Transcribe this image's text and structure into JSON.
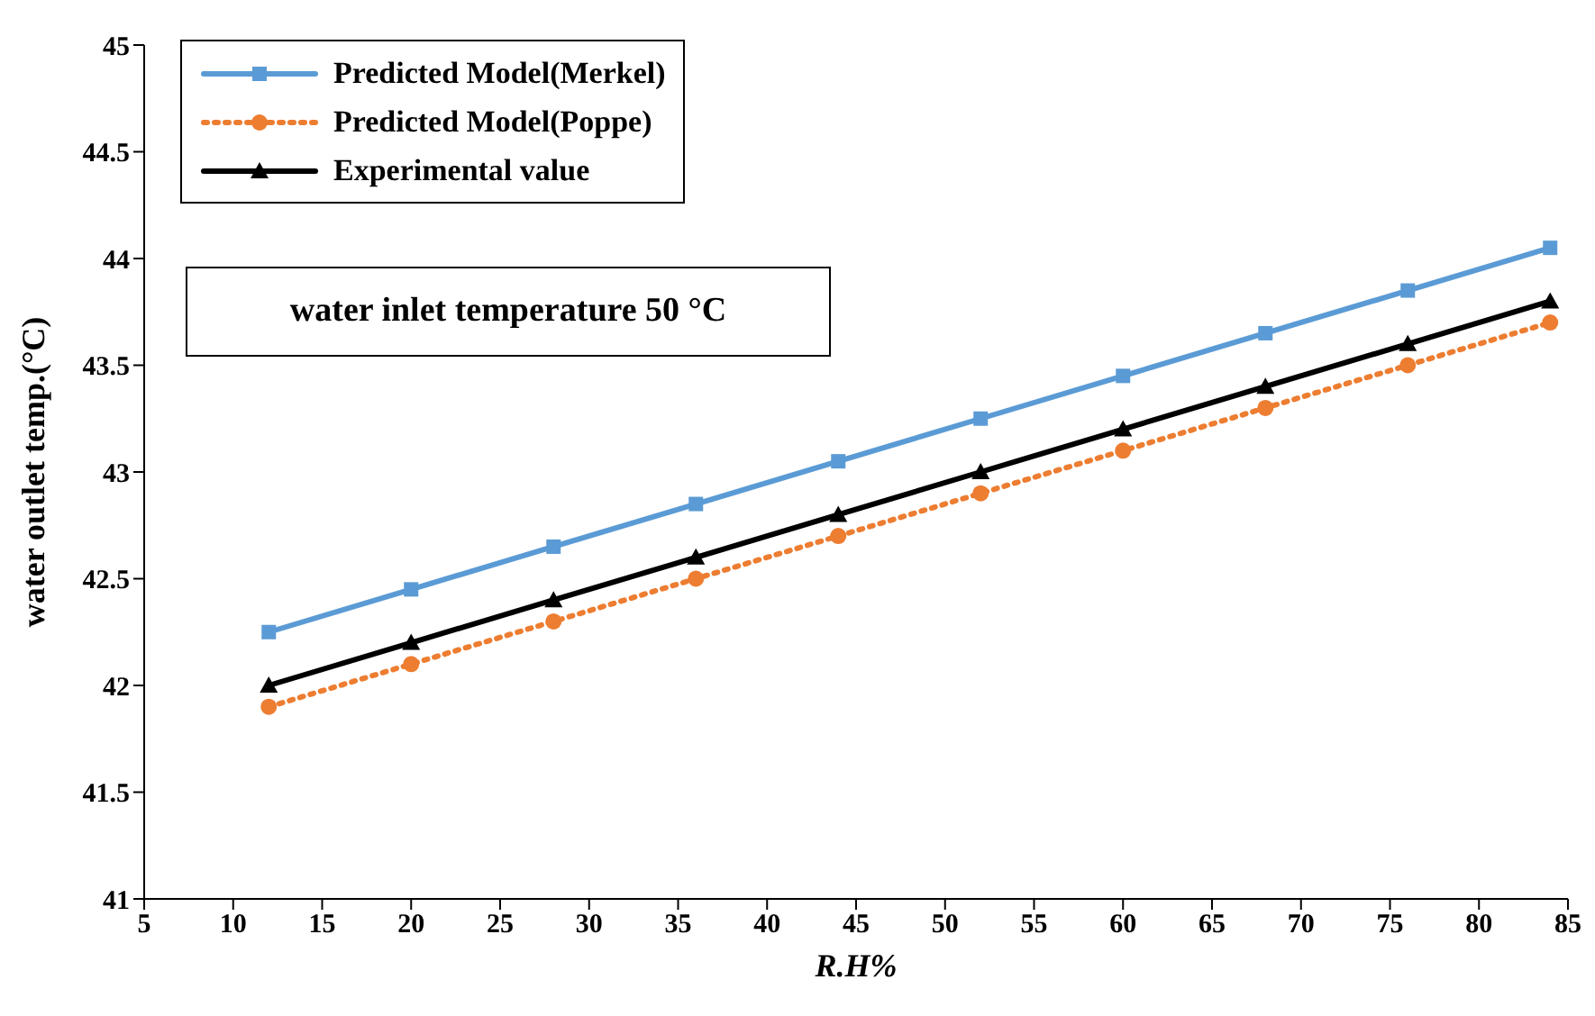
{
  "chart_data": {
    "type": "line",
    "xlabel": "R.H%",
    "ylabel": "water outlet temp.(°C)",
    "x": [
      12,
      20,
      28,
      36,
      44,
      52,
      60,
      68,
      76,
      84
    ],
    "series": [
      {
        "name": "Predicted Model(Merkel)",
        "color": "#5b9bd5",
        "marker": "square",
        "line_style": "solid",
        "values": [
          42.25,
          42.45,
          42.65,
          42.85,
          43.05,
          43.25,
          43.45,
          43.65,
          43.85,
          44.05
        ]
      },
      {
        "name": "Predicted Model(Poppe)",
        "color": "#ed7d31",
        "marker": "circle",
        "line_style": "dotted",
        "values": [
          41.9,
          42.1,
          42.3,
          42.5,
          42.7,
          42.9,
          43.1,
          43.3,
          43.5,
          43.7
        ]
      },
      {
        "name": "Experimental value",
        "color": "#000000",
        "marker": "triangle",
        "line_style": "solid",
        "values": [
          42.0,
          42.2,
          42.4,
          42.6,
          42.8,
          43.0,
          43.2,
          43.4,
          43.6,
          43.8
        ]
      }
    ],
    "xlim": [
      5,
      85
    ],
    "xticks": [
      5,
      10,
      15,
      20,
      25,
      30,
      35,
      40,
      45,
      50,
      55,
      60,
      65,
      70,
      75,
      80,
      85
    ],
    "ylim": [
      41,
      45
    ],
    "yticks": [
      41,
      41.5,
      42,
      42.5,
      43,
      43.5,
      44,
      44.5,
      45
    ],
    "grid": false,
    "legend": "top left",
    "annotations": [
      "water inlet temperature 50 °C"
    ]
  }
}
